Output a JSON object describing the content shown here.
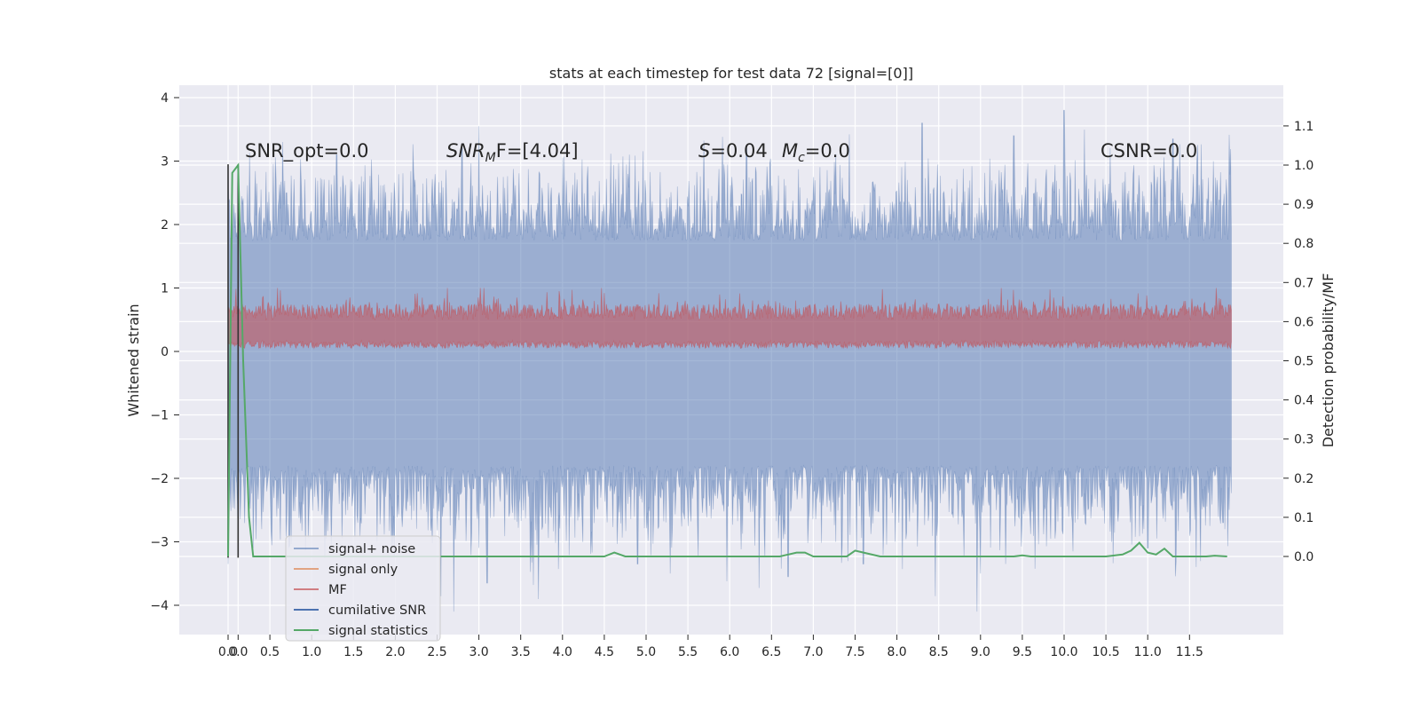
{
  "chart_data": {
    "type": "line",
    "title": "stats at each timestep for test data 72 [signal=[0]]",
    "xlabel": "",
    "ylabel": "Whitened strain",
    "ylabel_right": "Detection probability/MF",
    "xlim": [
      -0.5,
      12.75
    ],
    "ylim": [
      -4.4,
      4.15
    ],
    "ylim_right": [
      -0.2,
      1.2
    ],
    "x_ticks": [
      "0.0",
      "0.0",
      "0.5",
      "1.0",
      "1.5",
      "2.0",
      "2.5",
      "3.0",
      "3.5",
      "4.0",
      "4.5",
      "5.0",
      "5.5",
      "6.0",
      "6.5",
      "7.0",
      "7.5",
      "8.0",
      "8.5",
      "9.0",
      "9.5",
      "10.0",
      "10.5",
      "11.0",
      "11.5"
    ],
    "y_ticks": [
      "4",
      "3",
      "2",
      "1",
      "0",
      "−1",
      "−2",
      "−3",
      "−4"
    ],
    "y_ticks_right": [
      "1.1",
      "1.0",
      "0.9",
      "0.8",
      "0.7",
      "0.6",
      "0.5",
      "0.4",
      "0.3",
      "0.2",
      "0.1",
      "0.0"
    ],
    "grid": true,
    "legend_position": "lower-left",
    "annotations": [
      {
        "text": "SNR_opt=0.0",
        "x": 0.2,
        "y": 3.0
      },
      {
        "text": "SNR",
        "sub": "M",
        "rest": "F=[4.04]",
        "x": 2.6,
        "y": 3.0,
        "italic": true
      },
      {
        "text": "S",
        "rest": "=0.04",
        "x": 5.6,
        "y": 3.0,
        "italic": true
      },
      {
        "text": "M",
        "sub": "c",
        "rest": "=0.0",
        "x": 6.6,
        "y": 3.0,
        "italic": true
      },
      {
        "text": "CSNR=0.0",
        "x": 10.4,
        "y": 3.0
      }
    ],
    "series": [
      {
        "name": "signal+ noise",
        "color": "#4c72b0",
        "alpha": 0.5,
        "axis": "left",
        "x_range": [
          0,
          12.0
        ],
        "band_core": [
          -1.8,
          1.75
        ],
        "peaks_high_sample": [
          [
            0.0,
            2.95
          ],
          [
            0.7,
            2.5
          ],
          [
            1.3,
            3.1
          ],
          [
            2.8,
            3.2
          ],
          [
            3.0,
            3.55
          ],
          [
            4.8,
            3.1
          ],
          [
            6.2,
            3.2
          ],
          [
            8.3,
            3.6
          ],
          [
            9.4,
            3.4
          ],
          [
            10.0,
            3.8
          ],
          [
            11.3,
            3.35
          ],
          [
            11.9,
            2.3
          ]
        ],
        "peaks_low_sample": [
          [
            0.0,
            -3.35
          ],
          [
            0.3,
            -3.1
          ],
          [
            2.7,
            -4.1
          ],
          [
            3.1,
            -3.65
          ],
          [
            4.9,
            -3.35
          ],
          [
            6.7,
            -3.55
          ],
          [
            7.6,
            -3.35
          ],
          [
            9.0,
            -3.5
          ],
          [
            9.3,
            -3.35
          ],
          [
            11.0,
            -3.1
          ],
          [
            11.9,
            -2.7
          ]
        ]
      },
      {
        "name": "signal only",
        "color": "#dd8452",
        "axis": "left",
        "values": "flat"
      },
      {
        "name": "MF",
        "color": "#c44e52",
        "alpha": 0.5,
        "axis": "left",
        "x_range": [
          0,
          12.0
        ],
        "band": [
          0.0,
          0.55
        ],
        "max": 1.0
      },
      {
        "name": "cumilative SNR",
        "color": "#4c72b0",
        "axis": "right",
        "segments": [
          [
            0.0,
            0.0
          ],
          [
            0.0,
            1.0
          ],
          [
            0.12,
            1.0
          ],
          [
            0.12,
            0.0
          ]
        ]
      },
      {
        "name": "signal statistics",
        "color": "#55a868",
        "axis": "right",
        "x": [
          0.0,
          0.05,
          0.12,
          0.18,
          0.25,
          0.3,
          0.5,
          1.0,
          2.0,
          3.0,
          4.0,
          4.5,
          4.62,
          4.75,
          5.0,
          6.0,
          6.6,
          6.8,
          6.9,
          7.0,
          7.2,
          7.4,
          7.5,
          7.6,
          7.8,
          8.0,
          9.0,
          9.4,
          9.5,
          9.6,
          10.0,
          10.5,
          10.7,
          10.8,
          10.9,
          11.0,
          11.1,
          11.2,
          11.3,
          11.5,
          11.7,
          11.8,
          11.95
        ],
        "values": [
          0.0,
          0.98,
          1.0,
          0.5,
          0.1,
          0.0,
          0.0,
          0.0,
          0.0,
          0.0,
          0.0,
          0.0,
          0.01,
          0.0,
          0.0,
          0.0,
          0.0,
          0.01,
          0.01,
          0.0,
          0.0,
          0.0,
          0.015,
          0.01,
          0.0,
          0.0,
          0.0,
          0.0,
          0.003,
          0.0,
          0.0,
          0.0,
          0.005,
          0.015,
          0.035,
          0.01,
          0.005,
          0.02,
          0.0,
          0.0,
          0.0,
          0.002,
          0.0
        ]
      }
    ],
    "legend": [
      "signal+ noise",
      "signal only",
      "MF",
      "cumilative SNR",
      "signal statistics"
    ]
  }
}
